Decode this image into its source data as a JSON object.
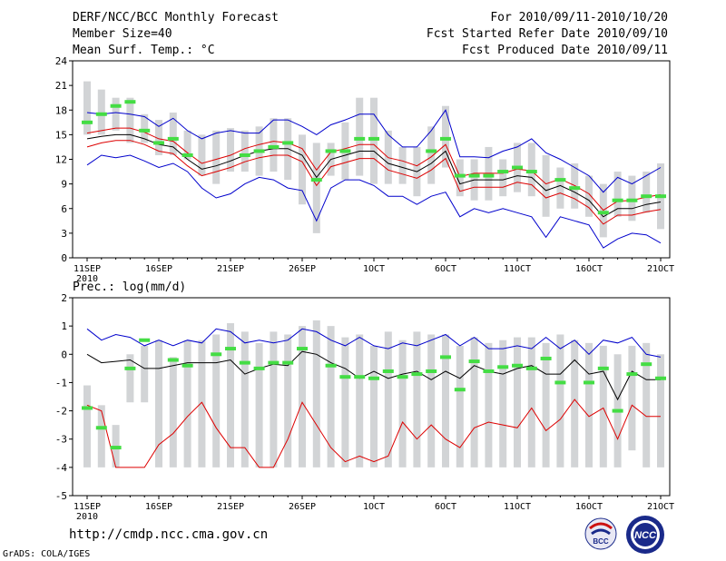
{
  "header": {
    "title": "DERF/NCC/BCC Monthly Forecast",
    "member_size": "Member Size=40",
    "variable": "Mean Surf. Temp.: °C",
    "period": "For 2010/09/11-2010/10/20",
    "fcst_started": "Fcst Started Refer Date 2010/09/10",
    "fcst_produced": "Fcst Produced Date 2010/09/11"
  },
  "footer": {
    "url": "http://cmdp.ncc.cma.gov.cn",
    "credit": "GrADS: COLA/IGES",
    "logo_bcc": "BCC",
    "logo_ncc": "NCC"
  },
  "colors": {
    "box": "#d2d4d6",
    "mean": "#000000",
    "envelope": "#0000cc",
    "std": "#dd0000",
    "obs": "#44dd44"
  },
  "chart_data": [
    {
      "type": "line",
      "title": "Mean Surf. Temp.: °C",
      "ylim": [
        0,
        24
      ],
      "ytick_values": [
        0,
        3,
        6,
        9,
        12,
        15,
        18,
        21,
        24
      ],
      "yticks": [
        "0",
        "3",
        "6",
        "9",
        "12",
        "15",
        "18",
        "21",
        "24"
      ],
      "xtick_days": [
        0,
        5,
        10,
        15,
        20,
        25,
        30,
        35,
        40
      ],
      "xticks": [
        "11SEP",
        "16SEP",
        "21SEP",
        "26SEP",
        "1OCT",
        "6OCT",
        "11OCT",
        "16OCT",
        "21OCT"
      ],
      "xyear": "2010",
      "series": [
        {
          "name": "ensemble mean",
          "values": [
            14.5,
            14.8,
            15.0,
            15.0,
            14.5,
            13.8,
            13.5,
            12.0,
            10.8,
            11.2,
            11.8,
            12.5,
            13.0,
            13.3,
            13.3,
            12.5,
            9.8,
            12.0,
            12.5,
            13.0,
            13.0,
            11.5,
            11.0,
            10.5,
            11.5,
            13.0,
            9.0,
            9.5,
            9.5,
            9.5,
            10.0,
            9.8,
            8.2,
            8.8,
            8.0,
            7.0,
            5.0,
            6.0,
            6.0,
            6.5,
            6.8
          ]
        },
        {
          "name": "mean + std",
          "values": [
            15.2,
            15.5,
            15.8,
            15.8,
            15.3,
            14.5,
            14.2,
            12.8,
            11.5,
            12.0,
            12.5,
            13.3,
            13.8,
            14.2,
            14.0,
            13.3,
            10.7,
            12.9,
            13.3,
            13.8,
            13.8,
            12.2,
            11.8,
            11.2,
            12.3,
            13.8,
            9.9,
            10.3,
            10.3,
            10.3,
            10.8,
            10.6,
            9.0,
            9.6,
            8.8,
            7.8,
            5.8,
            6.9,
            7.0,
            7.4,
            7.7
          ]
        },
        {
          "name": "mean - std",
          "values": [
            13.5,
            14.0,
            14.3,
            14.3,
            13.8,
            13.0,
            12.7,
            11.2,
            10.0,
            10.5,
            11.0,
            11.7,
            12.2,
            12.5,
            12.5,
            11.7,
            8.8,
            11.1,
            11.6,
            12.1,
            12.1,
            10.7,
            10.2,
            9.7,
            10.7,
            12.1,
            8.1,
            8.6,
            8.6,
            8.6,
            9.2,
            8.9,
            7.3,
            7.9,
            7.2,
            6.1,
            4.1,
            5.2,
            5.2,
            5.6,
            5.9
          ]
        },
        {
          "name": "ensemble max",
          "values": [
            17.7,
            17.5,
            17.7,
            17.5,
            17.2,
            16.0,
            17.0,
            15.5,
            14.5,
            15.2,
            15.5,
            15.2,
            15.2,
            16.8,
            16.8,
            16.0,
            15.0,
            16.2,
            16.8,
            17.5,
            17.5,
            15.0,
            13.5,
            13.5,
            15.5,
            18.0,
            12.3,
            12.3,
            12.2,
            13.0,
            13.5,
            14.5,
            12.8,
            12.0,
            11.0,
            10.0,
            8.0,
            9.8,
            9.0,
            10.0,
            11.0
          ]
        },
        {
          "name": "ensemble min",
          "values": [
            11.3,
            12.5,
            12.2,
            12.5,
            11.8,
            11.0,
            11.5,
            10.5,
            8.5,
            7.3,
            7.8,
            9.0,
            9.8,
            9.5,
            8.5,
            8.2,
            4.5,
            8.5,
            9.5,
            9.5,
            8.8,
            7.5,
            7.5,
            6.5,
            7.5,
            8.0,
            5.0,
            6.0,
            5.5,
            6.0,
            5.5,
            5.0,
            2.5,
            5.0,
            4.5,
            4.0,
            1.2,
            2.3,
            3.0,
            2.8,
            1.8
          ]
        },
        {
          "name": "box top",
          "values": [
            21.5,
            20.5,
            19.5,
            19.5,
            17.5,
            16.8,
            17.7,
            15.5,
            15.0,
            15.5,
            15.8,
            15.5,
            16.0,
            17.0,
            17.0,
            15.0,
            14.0,
            14.0,
            16.5,
            19.5,
            19.5,
            15.5,
            13.5,
            13.5,
            16.0,
            18.5,
            12.0,
            12.0,
            13.5,
            12.0,
            14.0,
            14.0,
            12.5,
            11.0,
            11.5,
            10.0,
            9.0,
            10.5,
            10.0,
            10.5,
            11.5
          ]
        },
        {
          "name": "box bottom",
          "values": [
            15.0,
            15.0,
            15.5,
            14.0,
            14.0,
            12.5,
            12.5,
            12.0,
            10.0,
            9.0,
            10.5,
            10.5,
            10.0,
            10.5,
            9.5,
            6.5,
            3.0,
            10.0,
            9.5,
            10.0,
            9.0,
            9.0,
            9.0,
            7.5,
            9.0,
            11.0,
            7.5,
            7.0,
            7.0,
            7.5,
            8.0,
            7.5,
            5.0,
            6.0,
            6.0,
            5.0,
            2.5,
            5.0,
            4.5,
            5.5,
            3.5
          ]
        },
        {
          "name": "observed",
          "values": [
            16.5,
            17.5,
            18.5,
            19.0,
            15.5,
            14.0,
            14.5,
            12.5,
            null,
            null,
            null,
            12.5,
            13.0,
            13.5,
            14.0,
            null,
            9.5,
            13.0,
            13.0,
            14.5,
            14.5,
            null,
            null,
            null,
            13.0,
            14.5,
            10.0,
            10.0,
            10.0,
            10.5,
            11.0,
            10.5,
            null,
            9.5,
            8.5,
            null,
            5.5,
            7.0,
            7.0,
            7.5,
            7.5
          ]
        }
      ]
    },
    {
      "type": "line",
      "title": "Prec.: log(mm/d)",
      "ylim": [
        -5,
        2
      ],
      "ytick_values": [
        -5,
        -4,
        -3,
        -2,
        -1,
        0,
        1,
        2
      ],
      "yticks": [
        "-5",
        "-4",
        "-3",
        "-2",
        "-1",
        "0",
        "1",
        "2"
      ],
      "xtick_days": [
        0,
        5,
        10,
        15,
        20,
        25,
        30,
        35,
        40
      ],
      "xticks": [
        "11SEP",
        "16SEP",
        "21SEP",
        "26SEP",
        "1OCT",
        "6OCT",
        "11OCT",
        "16OCT",
        "21OCT"
      ],
      "xyear": "2010",
      "series": [
        {
          "name": "ensemble mean",
          "values": [
            0.0,
            -0.3,
            -0.25,
            -0.2,
            -0.5,
            -0.5,
            -0.4,
            -0.3,
            -0.3,
            -0.3,
            -0.2,
            -0.7,
            -0.5,
            -0.35,
            -0.4,
            0.1,
            0.0,
            -0.3,
            -0.5,
            -0.85,
            -0.6,
            -0.85,
            -0.7,
            -0.6,
            -0.9,
            -0.6,
            -0.85,
            -0.4,
            -0.6,
            -0.7,
            -0.5,
            -0.4,
            -0.7,
            -0.7,
            -0.2,
            -0.7,
            -0.6,
            -1.6,
            -0.6,
            -0.9,
            -0.9
          ]
        },
        {
          "name": "ensemble max",
          "values": [
            0.9,
            0.5,
            0.7,
            0.6,
            0.3,
            0.5,
            0.3,
            0.5,
            0.4,
            0.9,
            0.8,
            0.4,
            0.5,
            0.4,
            0.5,
            0.9,
            0.8,
            0.5,
            0.3,
            0.6,
            0.3,
            0.2,
            0.4,
            0.3,
            0.5,
            0.7,
            0.3,
            0.6,
            0.2,
            0.2,
            0.3,
            0.2,
            0.6,
            0.2,
            0.5,
            0.0,
            0.5,
            0.4,
            0.6,
            0.0,
            -0.1
          ]
        },
        {
          "name": "ensemble min",
          "values": [
            -1.8,
            -2.0,
            -4.0,
            -4.0,
            -4.0,
            -3.2,
            -2.8,
            -2.2,
            -1.7,
            -2.6,
            -3.3,
            -3.3,
            -4.0,
            -4.0,
            -3.0,
            -1.7,
            -2.5,
            -3.3,
            -3.8,
            -3.6,
            -3.8,
            -3.6,
            -2.4,
            -3.0,
            -2.5,
            -3.0,
            -3.3,
            -2.6,
            -2.4,
            -2.5,
            -2.6,
            -1.9,
            -2.7,
            -2.3,
            -1.6,
            -2.2,
            -1.9,
            -3.0,
            -1.8,
            -2.2,
            -2.2
          ]
        },
        {
          "name": "box top",
          "values": [
            -1.1,
            -1.8,
            -2.5,
            0.0,
            0.3,
            0.5,
            -0.1,
            0.5,
            0.5,
            0.7,
            1.1,
            0.8,
            0.4,
            0.8,
            0.7,
            1.0,
            1.2,
            1.0,
            0.6,
            0.7,
            0.3,
            0.8,
            0.5,
            0.8,
            0.7,
            0.7,
            0.3,
            0.6,
            0.4,
            0.5,
            0.6,
            0.6,
            0.4,
            0.7,
            0.5,
            0.4,
            0.3,
            0.0,
            0.3,
            0.4,
            0.0
          ]
        },
        {
          "name": "box bottom",
          "values": [
            -4.0,
            -4.0,
            -4.0,
            -1.7,
            -1.7,
            -4.0,
            -4.0,
            -4.0,
            -4.0,
            -4.0,
            -4.0,
            -4.0,
            -4.0,
            -4.0,
            -4.0,
            -4.0,
            -4.0,
            -4.0,
            -4.0,
            -4.0,
            -4.0,
            -4.0,
            -4.0,
            -4.0,
            -4.0,
            -4.0,
            -4.0,
            -4.0,
            -4.0,
            -4.0,
            -4.0,
            -4.0,
            -4.0,
            -4.0,
            -4.0,
            -4.0,
            -4.0,
            -4.0,
            -3.4,
            -4.0,
            -4.0
          ]
        },
        {
          "name": "observed",
          "values": [
            -1.9,
            -2.6,
            -3.3,
            -0.5,
            0.5,
            null,
            -0.2,
            -0.4,
            null,
            0.0,
            0.2,
            -0.3,
            -0.5,
            -0.3,
            -0.3,
            0.2,
            null,
            -0.4,
            -0.8,
            -0.8,
            -0.85,
            -0.6,
            -0.8,
            -0.7,
            -0.6,
            -0.1,
            -1.25,
            -0.25,
            -0.6,
            -0.45,
            -0.4,
            -0.5,
            -0.15,
            -1.0,
            null,
            -1.0,
            -0.5,
            -2.0,
            -0.7,
            -0.35,
            -0.85
          ]
        }
      ]
    }
  ]
}
